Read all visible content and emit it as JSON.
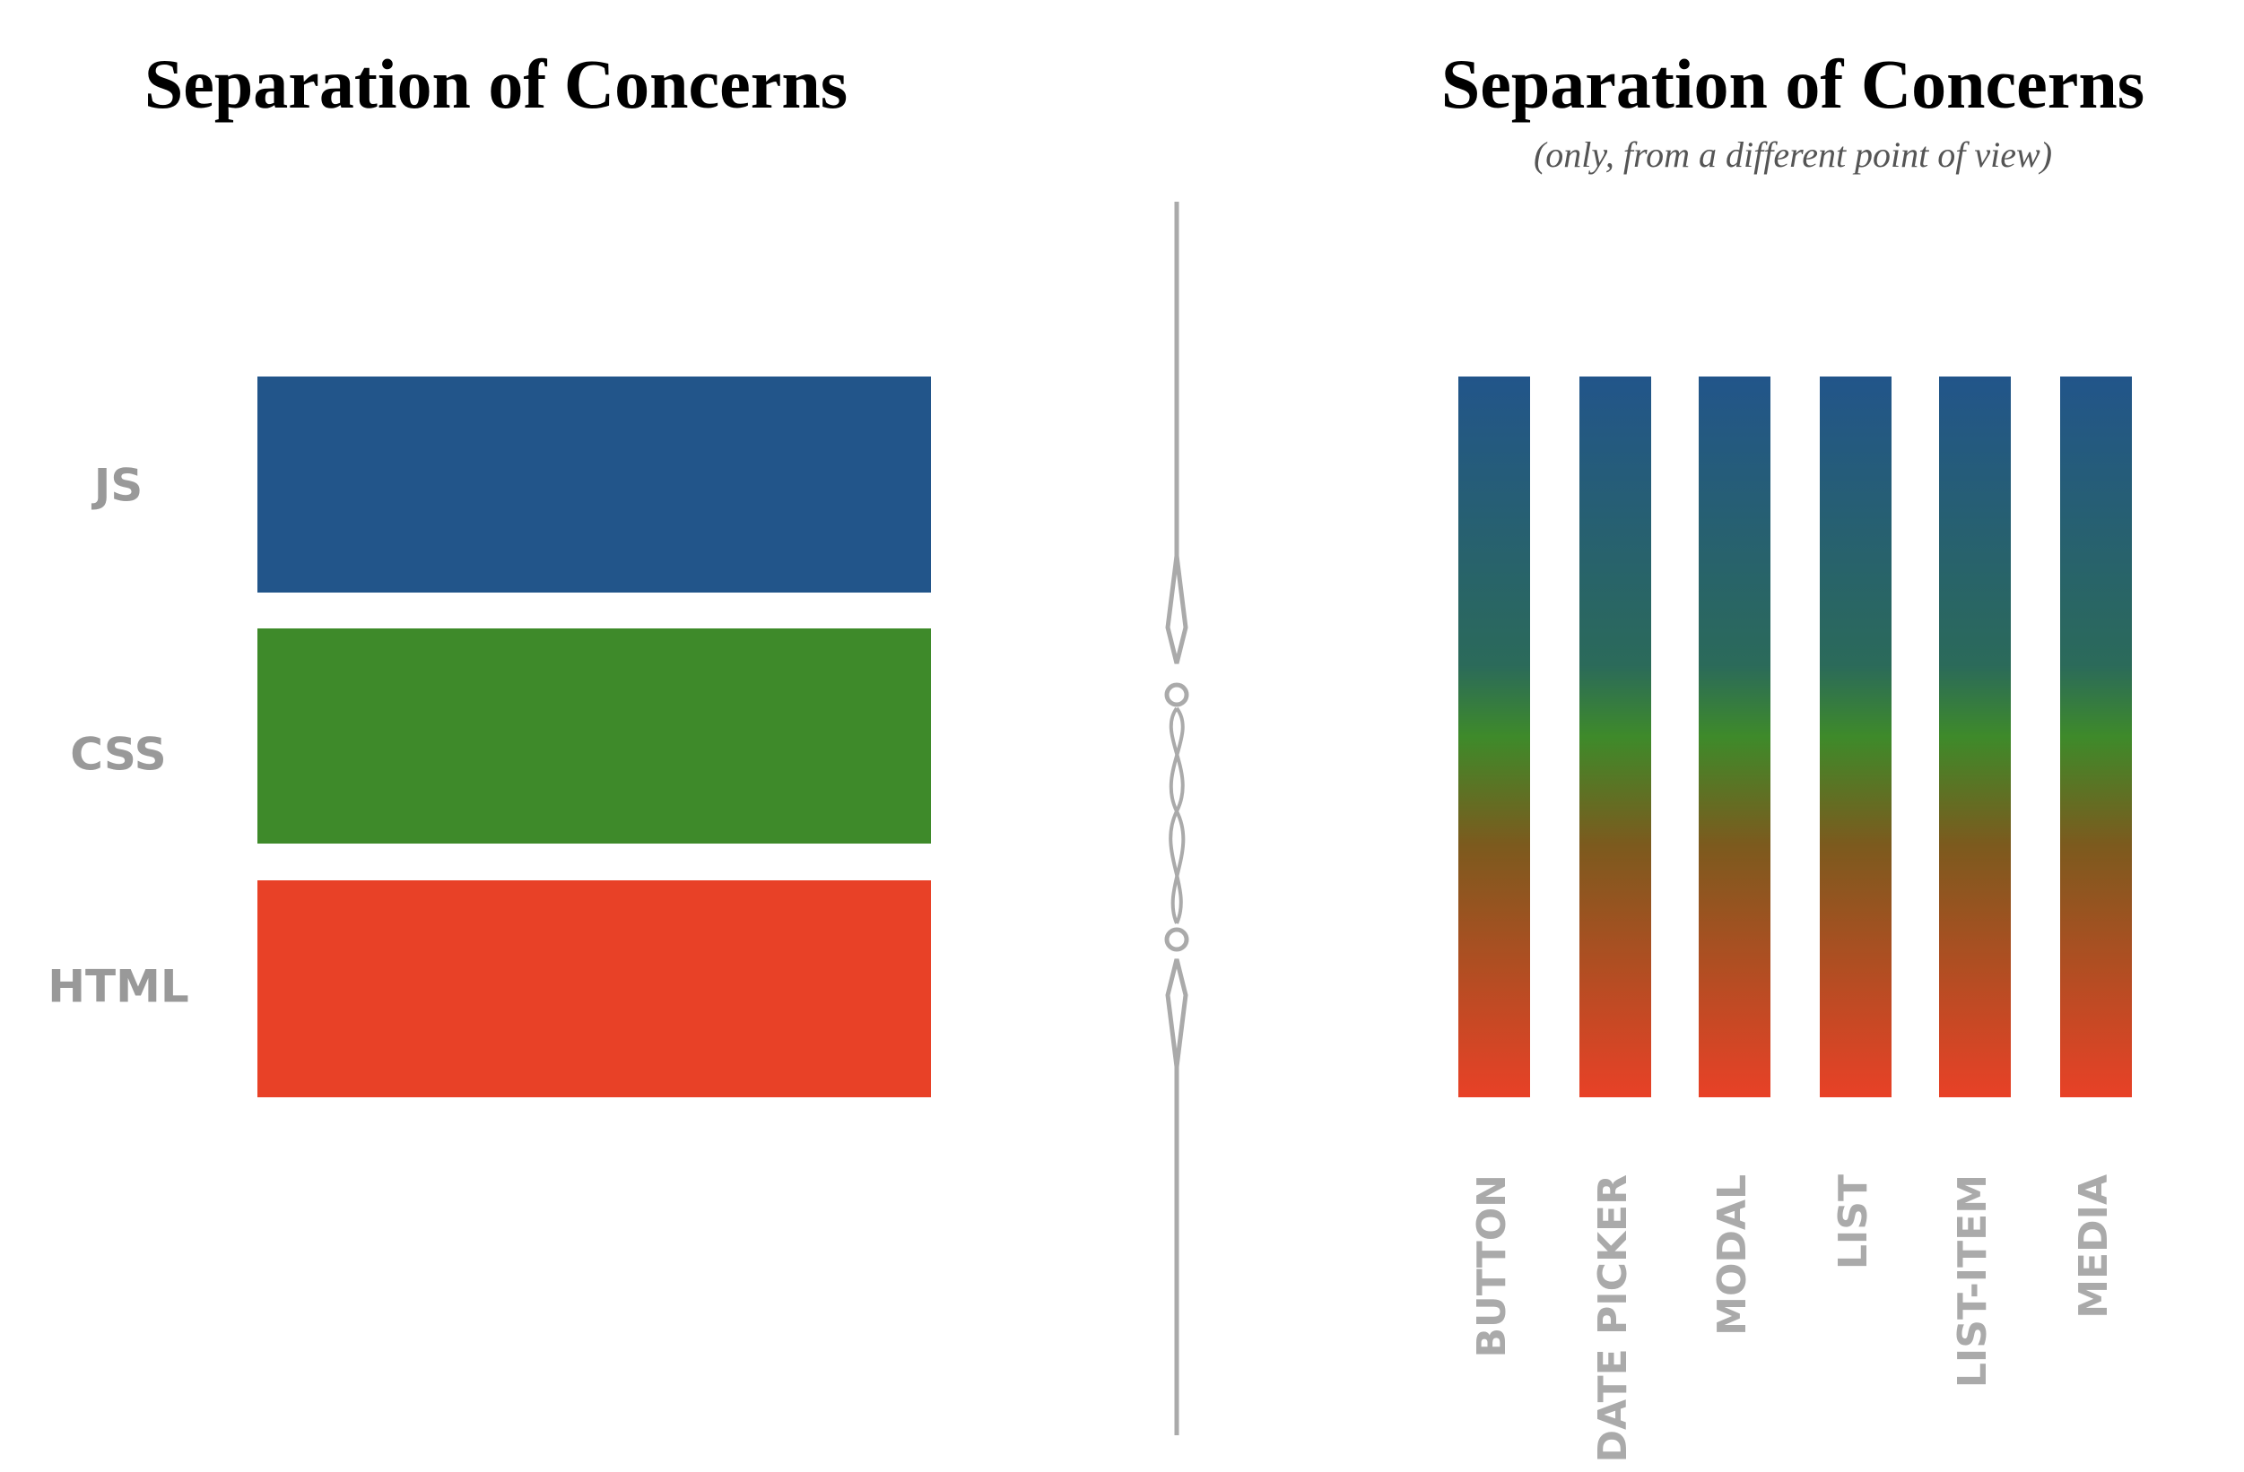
{
  "left": {
    "title": "Separation of Concerns",
    "layers": [
      "JS",
      "CSS",
      "HTML"
    ]
  },
  "right": {
    "title": "Separation of Concerns",
    "subtitle": "(only, from a different point of view)",
    "components": [
      "BUTTON",
      "DATE PICKER",
      "MODAL",
      "LIST",
      "LIST-ITEM",
      "MEDIA"
    ]
  }
}
